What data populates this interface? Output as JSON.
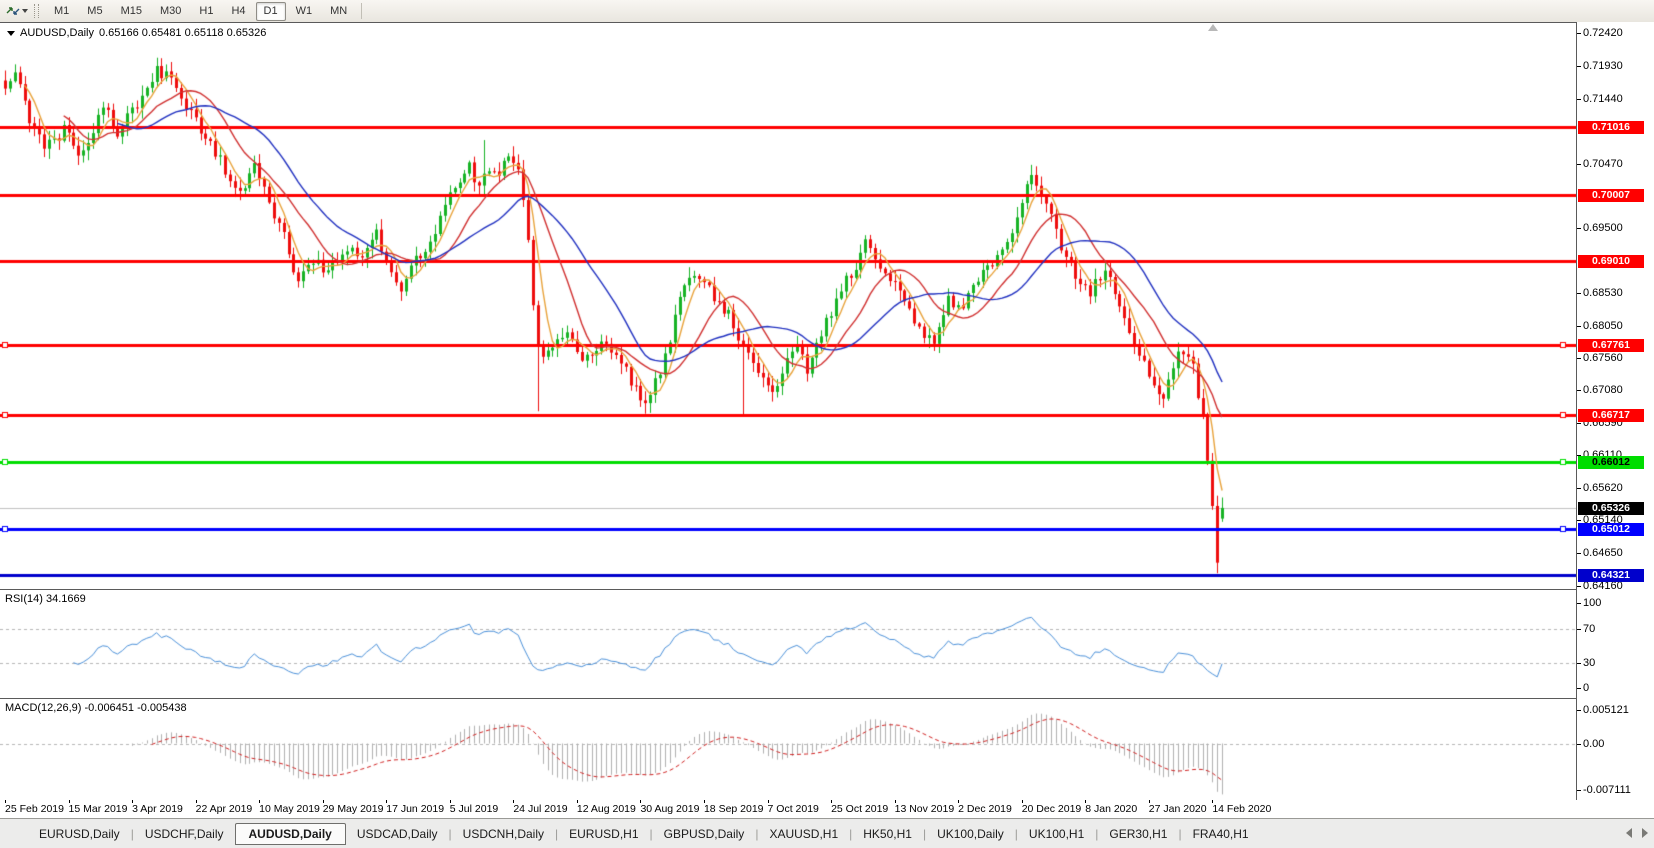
{
  "toolbar": {
    "timeframes": [
      "M1",
      "M5",
      "M15",
      "M30",
      "H1",
      "H4",
      "D1",
      "W1",
      "MN"
    ],
    "active_timeframe": "D1"
  },
  "chart": {
    "title": "AUDUSD,Daily",
    "ohlc_text": "0.65166 0.65481 0.65118 0.65326"
  },
  "indicators": {
    "rsi": {
      "label": "RSI(14)",
      "value": "34.1669"
    },
    "macd": {
      "label": "MACD(12,26,9)",
      "values": "-0.006451 -0.005438"
    }
  },
  "price_axis": {
    "ticks": [
      "0.72420",
      "0.71930",
      "0.71440",
      "0.70470",
      "0.69500",
      "0.68530",
      "0.68050",
      "0.67560",
      "0.67080",
      "0.66590",
      "0.66110",
      "0.65620",
      "0.65140",
      "0.64650",
      "0.64160"
    ],
    "current_price_label": {
      "text": "0.65326",
      "bg": "#000000",
      "fg": "#ffffff"
    }
  },
  "tabs": {
    "items": [
      "EURUSD,Daily",
      "USDCHF,Daily",
      "AUDUSD,Daily",
      "USDCAD,Daily",
      "USDCNH,Daily",
      "EURUSD,H1",
      "GBPUSD,Daily",
      "XAUUSD,H1",
      "HK50,H1",
      "UK100,Daily",
      "UK100,H1",
      "GER30,H1",
      "FRA40,H1"
    ],
    "active_index": 2
  },
  "chart_data": {
    "type": "candlestick",
    "symbol": "AUDUSD",
    "timeframe": "Daily",
    "candle_count": 250,
    "last_candle": {
      "open": 0.65166,
      "high": 0.65481,
      "low": 0.65118,
      "close": 0.65326
    },
    "current_price": 0.65326,
    "up_color": "#17b325",
    "down_color": "#ee0d0d",
    "price_path_anchors": [
      [
        0,
        0.715
      ],
      [
        2,
        0.7185
      ],
      [
        5,
        0.7105
      ],
      [
        8,
        0.7072
      ],
      [
        12,
        0.7098
      ],
      [
        15,
        0.706
      ],
      [
        20,
        0.7128
      ],
      [
        23,
        0.7095
      ],
      [
        27,
        0.714
      ],
      [
        31,
        0.7192
      ],
      [
        34,
        0.717
      ],
      [
        38,
        0.7125
      ],
      [
        43,
        0.706
      ],
      [
        48,
        0.7008
      ],
      [
        51,
        0.7038
      ],
      [
        54,
        0.6985
      ],
      [
        57,
        0.6935
      ],
      [
        60,
        0.687
      ],
      [
        63,
        0.6905
      ],
      [
        66,
        0.688
      ],
      [
        70,
        0.6925
      ],
      [
        73,
        0.69
      ],
      [
        76,
        0.6938
      ],
      [
        78,
        0.6902
      ],
      [
        81,
        0.686
      ],
      [
        84,
        0.69
      ],
      [
        87,
        0.6935
      ],
      [
        90,
        0.6985
      ],
      [
        93,
        0.7022
      ],
      [
        95,
        0.704
      ],
      [
        97,
        0.7008
      ],
      [
        99,
        0.7045
      ],
      [
        101,
        0.702
      ],
      [
        103,
        0.7062
      ],
      [
        105,
        0.704
      ],
      [
        107,
        0.694
      ],
      [
        108,
        0.6832
      ],
      [
        109,
        0.6775
      ],
      [
        111,
        0.6758
      ],
      [
        113,
        0.679
      ],
      [
        116,
        0.6782
      ],
      [
        119,
        0.6752
      ],
      [
        122,
        0.6788
      ],
      [
        125,
        0.676
      ],
      [
        128,
        0.672
      ],
      [
        131,
        0.669
      ],
      [
        134,
        0.674
      ],
      [
        137,
        0.6815
      ],
      [
        140,
        0.6885
      ],
      [
        143,
        0.6862
      ],
      [
        146,
        0.6845
      ],
      [
        149,
        0.6805
      ],
      [
        152,
        0.676
      ],
      [
        155,
        0.6725
      ],
      [
        157,
        0.67
      ],
      [
        159,
        0.674
      ],
      [
        162,
        0.6768
      ],
      [
        164,
        0.6742
      ],
      [
        167,
        0.6788
      ],
      [
        170,
        0.6848
      ],
      [
        173,
        0.6882
      ],
      [
        176,
        0.6926
      ],
      [
        179,
        0.69
      ],
      [
        182,
        0.6862
      ],
      [
        185,
        0.6828
      ],
      [
        188,
        0.6795
      ],
      [
        190,
        0.6772
      ],
      [
        193,
        0.6842
      ],
      [
        196,
        0.6838
      ],
      [
        199,
        0.6878
      ],
      [
        202,
        0.6895
      ],
      [
        205,
        0.6928
      ],
      [
        208,
        0.6988
      ],
      [
        210,
        0.7032
      ],
      [
        212,
        0.6995
      ],
      [
        214,
        0.6965
      ],
      [
        216,
        0.692
      ],
      [
        219,
        0.6882
      ],
      [
        222,
        0.6858
      ],
      [
        225,
        0.6888
      ],
      [
        227,
        0.6862
      ],
      [
        230,
        0.68
      ],
      [
        233,
        0.6748
      ],
      [
        235,
        0.6705
      ],
      [
        237,
        0.669
      ],
      [
        239,
        0.6742
      ],
      [
        241,
        0.6772
      ],
      [
        243,
        0.6742
      ],
      [
        244,
        0.67
      ],
      [
        245,
        0.6665
      ],
      [
        246,
        0.6605
      ],
      [
        247,
        0.6545
      ],
      [
        248,
        0.6458
      ],
      [
        249,
        0.65326
      ]
    ],
    "spikes": [
      {
        "i": 31,
        "high": 0.7205
      },
      {
        "i": 98,
        "high": 0.7082
      },
      {
        "i": 109,
        "low": 0.6677
      },
      {
        "i": 151,
        "low": 0.667
      },
      {
        "i": 210,
        "high": 0.7045
      },
      {
        "i": 237,
        "low": 0.6682
      },
      {
        "i": 248,
        "low": 0.6435
      }
    ],
    "horizontal_levels": [
      {
        "price": 0.71016,
        "color": "#ff0000",
        "label_fg": "#ffffff",
        "width": 3,
        "handles": false
      },
      {
        "price": 0.70007,
        "color": "#ff0000",
        "label_fg": "#ffffff",
        "width": 3,
        "handles": false
      },
      {
        "price": 0.6901,
        "color": "#ff0000",
        "label_fg": "#ffffff",
        "width": 3,
        "handles": false
      },
      {
        "price": 0.67761,
        "color": "#ff0000",
        "label_fg": "#ffffff",
        "width": 3,
        "handles": true
      },
      {
        "price": 0.66717,
        "color": "#ff0000",
        "label_fg": "#ffffff",
        "width": 3,
        "handles": true
      },
      {
        "price": 0.66012,
        "color": "#00dd00",
        "label_fg": "#000000",
        "width": 3,
        "handles": true
      },
      {
        "price": 0.65012,
        "color": "#0000ff",
        "label_fg": "#ffffff",
        "width": 3,
        "handles": true
      },
      {
        "price": 0.64321,
        "color": "#0000cc",
        "label_fg": "#ffffff",
        "width": 3,
        "handles": false
      }
    ],
    "moving_averages": [
      {
        "name": "fast-ma",
        "period": 5,
        "color": "#e8a33c"
      },
      {
        "name": "mid-ma",
        "period": 13,
        "color": "#d03030"
      },
      {
        "name": "slow-ma",
        "period": 24,
        "color": "#2030c0"
      }
    ],
    "y_axis_range": {
      "top_tick": 0.7242,
      "bottom_tick": 0.6416
    },
    "x_axis_labels": [
      "25 Feb 2019",
      "15 Mar 2019",
      "3 Apr 2019",
      "22 Apr 2019",
      "10 May 2019",
      "29 May 2019",
      "17 Jun 2019",
      "5 Jul 2019",
      "24 Jul 2019",
      "12 Aug 2019",
      "30 Aug 2019",
      "18 Sep 2019",
      "7 Oct 2019",
      "25 Oct 2019",
      "13 Nov 2019",
      "2 Dec 2019",
      "20 Dec 2019",
      "8 Jan 2020",
      "27 Jan 2020",
      "14 Feb 2020"
    ],
    "rsi": {
      "period": 14,
      "current": 34.1669,
      "ticks": [
        "100",
        "70",
        "30",
        "0"
      ],
      "tick_values": [
        100,
        70,
        30,
        0
      ],
      "guides": [
        70,
        30
      ],
      "line_color": "#4a90d9"
    },
    "macd": {
      "fast": 12,
      "slow": 26,
      "signal": 9,
      "current_main": -0.006451,
      "current_signal": -0.005438,
      "ticks": [
        "0.005121",
        "0.00",
        "-0.007111"
      ],
      "tick_values": [
        0.005121,
        0,
        -0.007111
      ],
      "histogram_color": "#b0b0b0",
      "signal_color": "#d02020"
    }
  }
}
